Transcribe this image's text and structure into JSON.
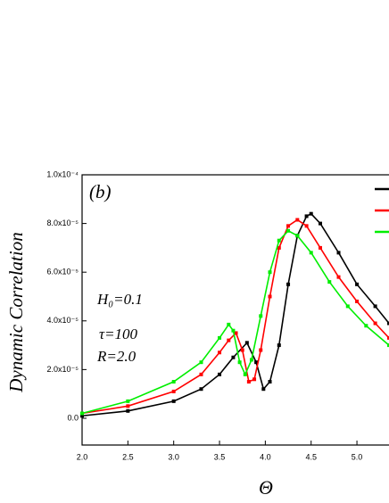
{
  "chart_data": {
    "type": "line",
    "annotations": [
      "(b)",
      "H₀=0.1",
      "τ=100",
      "R=2.0"
    ],
    "x_label": "Θ",
    "y_label": "Dynamic Correlation",
    "xlim": [
      2.0,
      5.35
    ],
    "xticks": [
      {
        "value": 2.0,
        "label": "2.0"
      },
      2.5,
      {
        "value": 3.0,
        "label": "3.0"
      },
      3.5,
      {
        "value": 4.0,
        "label": "4.0"
      },
      4.5,
      {
        "value": 5.0,
        "label": "5.0"
      }
    ],
    "ylim": [
      -1.1e-05,
      0.0001
    ],
    "yticks": [
      {
        "value": 0,
        "label": "0.0"
      },
      {
        "value": 2e-05,
        "label": "2.0x10⁻⁵"
      },
      {
        "value": 4e-05,
        "label": "4.0x10⁻⁵"
      },
      {
        "value": 6e-05,
        "label": "6.0x10⁻⁵"
      },
      {
        "value": 8e-05,
        "label": "8.0x10⁻⁵"
      },
      {
        "value": 0.0001,
        "label": "1.0x10⁻⁴"
      }
    ],
    "series": [
      {
        "color": "#000000",
        "x": [
          2.0,
          2.5,
          3.0,
          3.3,
          3.5,
          3.65,
          3.8,
          3.9,
          3.98,
          4.05,
          4.15,
          4.25,
          4.35,
          4.45,
          4.5,
          4.6,
          4.8,
          5.0,
          5.2,
          5.35
        ],
        "values": [
          1e-06,
          3e-06,
          7e-06,
          1.2e-05,
          1.8e-05,
          2.5e-05,
          3.1e-05,
          2.3e-05,
          1.2e-05,
          1.5e-05,
          3e-05,
          5.5e-05,
          7.5e-05,
          8.3e-05,
          8.4e-05,
          8e-05,
          6.8e-05,
          5.5e-05,
          4.6e-05,
          3.9e-05
        ]
      },
      {
        "color": "#ff0000",
        "x": [
          2.0,
          2.5,
          3.0,
          3.3,
          3.5,
          3.6,
          3.68,
          3.75,
          3.82,
          3.88,
          3.95,
          4.05,
          4.15,
          4.25,
          4.35,
          4.45,
          4.6,
          4.8,
          5.0,
          5.2,
          5.35
        ],
        "values": [
          2e-06,
          5e-06,
          1.1e-05,
          1.8e-05,
          2.7e-05,
          3.2e-05,
          3.5e-05,
          2.8e-05,
          1.5e-05,
          1.6e-05,
          2.8e-05,
          5e-05,
          7e-05,
          7.9e-05,
          8.15e-05,
          7.9e-05,
          7e-05,
          5.8e-05,
          4.8e-05,
          3.9e-05,
          3.3e-05
        ]
      },
      {
        "color": "#00ee00",
        "x": [
          2.0,
          2.5,
          3.0,
          3.3,
          3.5,
          3.6,
          3.65,
          3.72,
          3.78,
          3.85,
          3.95,
          4.05,
          4.15,
          4.25,
          4.35,
          4.5,
          4.7,
          4.9,
          5.1,
          5.35
        ],
        "values": [
          2e-06,
          7e-06,
          1.5e-05,
          2.3e-05,
          3.3e-05,
          3.85e-05,
          3.6e-05,
          2.3e-05,
          1.8e-05,
          2.4e-05,
          4.2e-05,
          6e-05,
          7.3e-05,
          7.7e-05,
          7.5e-05,
          6.8e-05,
          5.6e-05,
          4.6e-05,
          3.8e-05,
          3e-05
        ]
      }
    ]
  }
}
